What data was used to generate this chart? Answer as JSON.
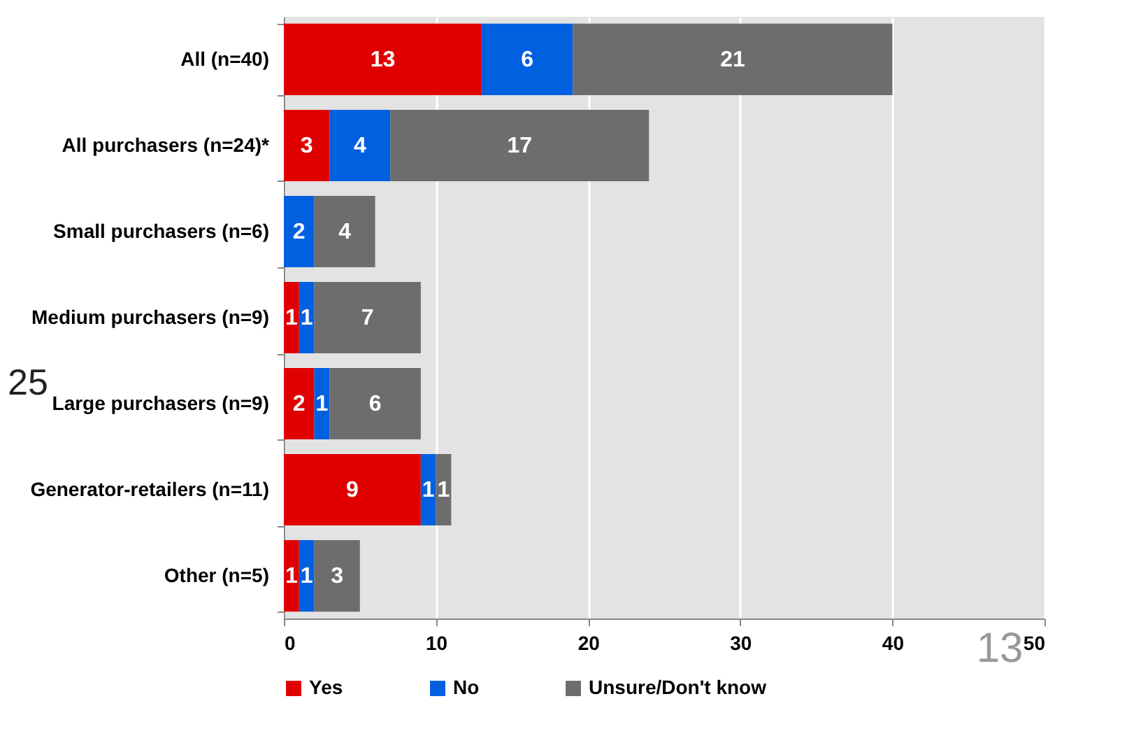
{
  "chart_data": {
    "type": "bar",
    "orientation": "horizontal",
    "stacked": true,
    "categories": [
      "All (n=40)",
      "All purchasers (n=24)*",
      "Small purchasers (n=6)",
      "Medium purchasers (n=9)",
      "Large purchasers (n=9)",
      "Generator-retailers (n=11)",
      "Other (n=5)"
    ],
    "series": [
      {
        "name": "Yes",
        "color": "#e00000",
        "values": [
          13,
          3,
          null,
          1,
          2,
          9,
          1
        ]
      },
      {
        "name": "No",
        "color": "#0060e0",
        "values": [
          6,
          4,
          2,
          1,
          1,
          1,
          1
        ]
      },
      {
        "name": "Unsure/Don't know",
        "color": "#6d6d6d",
        "values": [
          21,
          17,
          4,
          7,
          6,
          1,
          3
        ]
      }
    ],
    "xlim": [
      0,
      50
    ],
    "xticks": [
      0,
      10,
      20,
      30,
      40,
      50
    ],
    "grid": "x",
    "legend": "bottom",
    "data_labels": true,
    "annotations": [
      "25",
      "13"
    ]
  }
}
